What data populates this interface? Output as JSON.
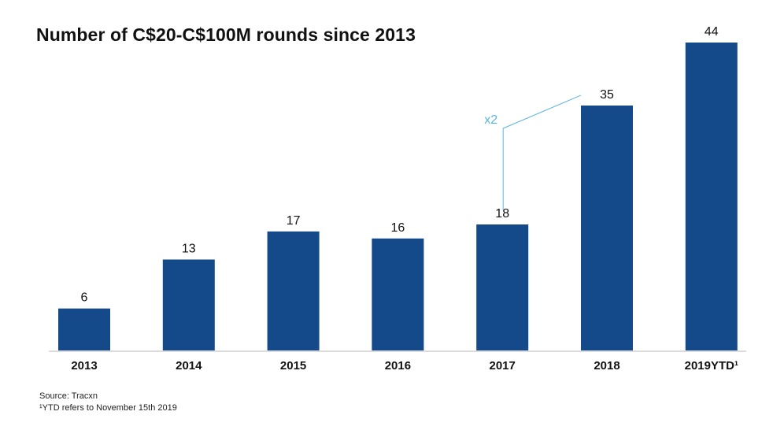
{
  "chart_data": {
    "type": "bar",
    "title": "Number of C$20-C$100M rounds since 2013",
    "categories": [
      "2013",
      "2014",
      "2015",
      "2016",
      "2017",
      "2018",
      "2019YTD¹"
    ],
    "values": [
      6,
      13,
      17,
      16,
      18,
      35,
      44
    ],
    "data_labels": [
      "6",
      "13",
      "17",
      "16",
      "18",
      "35",
      "44"
    ],
    "xlabel": "",
    "ylabel": "",
    "ylim": [
      0,
      44
    ],
    "grid": false,
    "legend": "none",
    "bar_color": "#154a8a",
    "annotation": {
      "text": "x2",
      "from_category": "2017",
      "to_category": "2018",
      "color": "#5ab4e0"
    }
  },
  "footer": {
    "source": "Source: Tracxn",
    "note": "¹YTD refers to November 15th 2019"
  }
}
